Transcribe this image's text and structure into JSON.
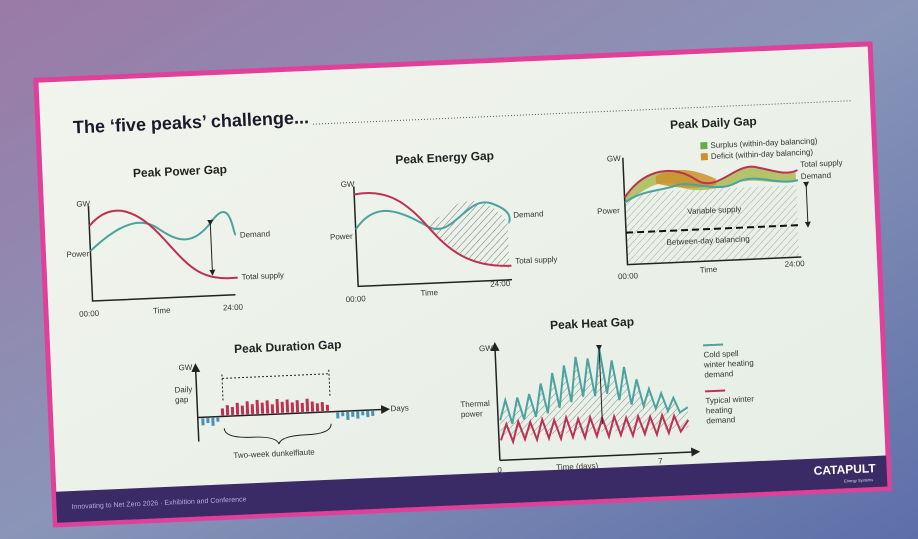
{
  "header": {
    "title": "The ‘five peaks’ challenge..."
  },
  "panels": [
    {
      "title": "Peak Power Gap",
      "labels": {
        "y_unit": "GW",
        "y_axis": "Power",
        "demand": "Demand",
        "supply": "Total supply",
        "x_start": "00:00",
        "x_axis": "Time",
        "x_end": "24:00"
      }
    },
    {
      "title": "Peak Energy Gap",
      "labels": {
        "y_unit": "GW",
        "y_axis": "Power",
        "demand": "Demand",
        "supply": "Total supply",
        "x_start": "00:00",
        "x_axis": "Time",
        "x_end": "24:00"
      }
    },
    {
      "title": "Peak Daily Gap",
      "labels": {
        "y_unit": "GW",
        "y_axis": "Power",
        "surplus": "Surplus (within-day balancing)",
        "deficit": "Deficit (within-day balancing)",
        "supply": "Total supply",
        "demand": "Demand",
        "variable": "Variable supply",
        "between": "Between-day balancing",
        "x_start": "00:00",
        "x_axis": "Time",
        "x_end": "24:00"
      }
    },
    {
      "title": "Peak Duration Gap",
      "labels": {
        "y_unit": "GW",
        "y_axis": [
          "Daily",
          "gap"
        ],
        "x_axis": "Days",
        "span": "Two-week dunkelflaute"
      }
    },
    {
      "title": "Peak Heat Gap",
      "labels": {
        "y_unit": "GW",
        "y_axis": [
          "Thermal",
          "power"
        ],
        "x_axis": "Time (days)",
        "x_start": "0",
        "x_end": "7",
        "cold": [
          "Cold spell",
          "winter heating",
          "demand"
        ],
        "typical": [
          "Typical winter",
          "heating",
          "demand"
        ]
      }
    }
  ],
  "footer": {
    "event": "Innovating to Net Zero 2026 · Exhibition and Conference",
    "brand": "CATAPULT",
    "brand_sub": "Energy Systems"
  }
}
